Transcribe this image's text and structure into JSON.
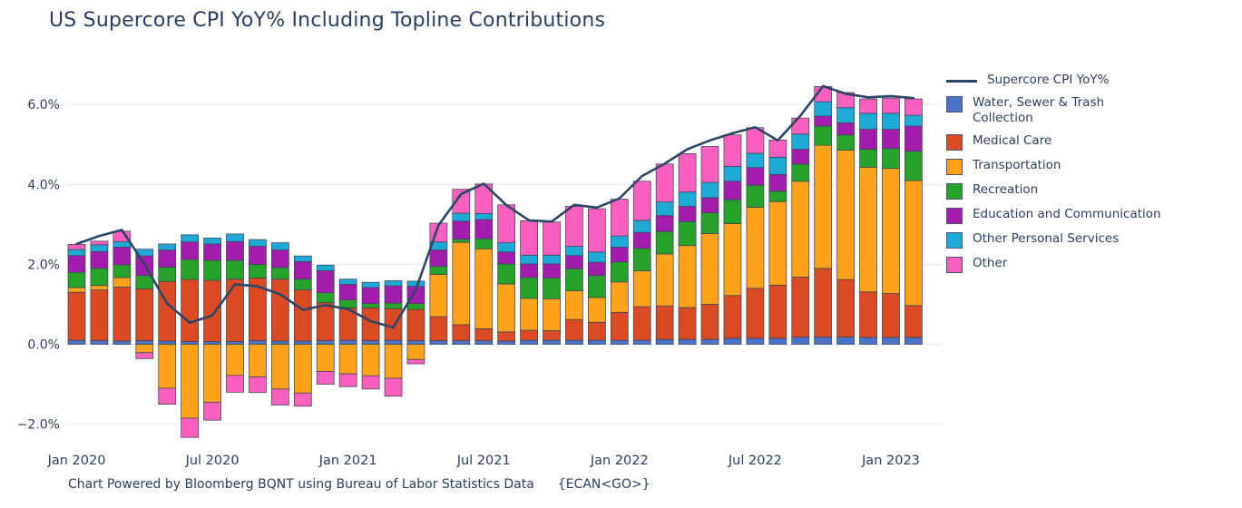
{
  "title": "US Supercore CPI YoY% Including Topline Contributions",
  "footer": {
    "text": "Chart Powered by Bloomberg BQNT using Bureau of Labor Statistics Data",
    "code": "{ECAN<GO>}"
  },
  "colors": {
    "text": "#2a3f5f",
    "grid": "#e8eef7",
    "bar_outline": "#3c4657",
    "line": "#2e4566",
    "water": "#4c72c8",
    "medical": "#da4a24",
    "transportation": "#fea31b",
    "recreation": "#27a22b",
    "education": "#a31dad",
    "other_personal": "#1fa9d6",
    "other": "#fa60be"
  },
  "legend": {
    "items": [
      {
        "type": "line",
        "label": "Supercore CPI YoY%",
        "color": "#2e4566"
      },
      {
        "type": "box",
        "label": "Water, Sewer & Trash\nCollection",
        "color": "#4c72c8"
      },
      {
        "type": "box",
        "label": "Medical Care",
        "color": "#da4a24"
      },
      {
        "type": "box",
        "label": "Transportation",
        "color": "#fea31b"
      },
      {
        "type": "box",
        "label": "Recreation",
        "color": "#27a22b"
      },
      {
        "type": "box",
        "label": "Education and Communication",
        "color": "#a31dad"
      },
      {
        "type": "box",
        "label": "Other Personal Services",
        "color": "#1fa9d6"
      },
      {
        "type": "box",
        "label": "Other",
        "color": "#fa60be"
      }
    ]
  },
  "chart_data": {
    "type": "bar",
    "subtype": "stacked-bar-with-line",
    "title": "US Supercore CPI YoY% Including Topline Contributions",
    "xlabel": "",
    "ylabel": "",
    "grid": true,
    "legend_position": "right",
    "ylim": [
      -2.8,
      6.9
    ],
    "categories": [
      "Jan 2020",
      "Feb 2020",
      "Mar 2020",
      "Apr 2020",
      "May 2020",
      "Jun 2020",
      "Jul 2020",
      "Aug 2020",
      "Sep 2020",
      "Oct 2020",
      "Nov 2020",
      "Dec 2020",
      "Jan 2021",
      "Feb 2021",
      "Mar 2021",
      "Apr 2021",
      "May 2021",
      "Jun 2021",
      "Jul 2021",
      "Aug 2021",
      "Sep 2021",
      "Oct 2021",
      "Nov 2021",
      "Dec 2021",
      "Jan 2022",
      "Feb 2022",
      "Mar 2022",
      "Apr 2022",
      "May 2022",
      "Jun 2022",
      "Jul 2022",
      "Aug 2022",
      "Sep 2022",
      "Oct 2022",
      "Nov 2022",
      "Dec 2022",
      "Jan 2023",
      "Feb 2023"
    ],
    "y_axis": {
      "ticks": [
        {
          "value": 6,
          "label": "6.0%"
        },
        {
          "value": 4,
          "label": "4.0%"
        },
        {
          "value": 2,
          "label": "2.0%"
        },
        {
          "value": 0,
          "label": "0.0%"
        },
        {
          "value": -2,
          "label": "−2.0%"
        }
      ]
    },
    "x_axis": {
      "ticks": [
        {
          "index": 0,
          "label": "Jan 2020"
        },
        {
          "index": 6,
          "label": "Jul 2020"
        },
        {
          "index": 12,
          "label": "Jan 2021"
        },
        {
          "index": 18,
          "label": "Jul 2021"
        },
        {
          "index": 24,
          "label": "Jan 2022"
        },
        {
          "index": 30,
          "label": "Jul 2022"
        },
        {
          "index": 36,
          "label": "Jan 2023"
        }
      ]
    },
    "series": [
      {
        "name": "Water, Sewer & Trash Collection",
        "color": "#4c72c8",
        "values": [
          0.1,
          0.09,
          0.08,
          0.09,
          0.08,
          0.07,
          0.07,
          0.07,
          0.09,
          0.08,
          0.08,
          0.09,
          0.1,
          0.09,
          0.1,
          0.09,
          0.09,
          0.09,
          0.09,
          0.08,
          0.1,
          0.1,
          0.1,
          0.1,
          0.1,
          0.1,
          0.12,
          0.12,
          0.12,
          0.15,
          0.15,
          0.15,
          0.18,
          0.18,
          0.18,
          0.17,
          0.17,
          0.17
        ]
      },
      {
        "name": "Medical Care",
        "color": "#da4a24",
        "values": [
          1.2,
          1.27,
          1.35,
          1.3,
          1.49,
          1.55,
          1.53,
          1.56,
          1.57,
          1.55,
          1.28,
          0.95,
          0.81,
          0.82,
          0.79,
          0.78,
          0.6,
          0.4,
          0.3,
          0.23,
          0.25,
          0.24,
          0.52,
          0.45,
          0.7,
          0.84,
          0.84,
          0.8,
          0.88,
          1.07,
          1.25,
          1.33,
          1.5,
          1.72,
          1.44,
          1.14,
          1.1,
          0.8
        ]
      },
      {
        "name": "Transportation",
        "color": "#fea31b",
        "values": [
          0.12,
          0.11,
          0.24,
          -0.21,
          -1.1,
          -1.85,
          -1.45,
          -0.78,
          -0.82,
          -1.12,
          -1.22,
          -0.68,
          -0.74,
          -0.79,
          -0.85,
          -0.38,
          1.06,
          2.06,
          2.0,
          1.2,
          0.8,
          0.8,
          0.72,
          0.62,
          0.76,
          0.9,
          1.3,
          1.55,
          1.77,
          1.8,
          2.03,
          2.09,
          2.4,
          3.08,
          3.24,
          3.12,
          3.13,
          3.13
        ]
      },
      {
        "name": "Recreation",
        "color": "#27a22b",
        "values": [
          0.38,
          0.43,
          0.32,
          0.33,
          0.36,
          0.5,
          0.5,
          0.47,
          0.34,
          0.29,
          0.27,
          0.25,
          0.2,
          0.11,
          0.14,
          0.15,
          0.2,
          0.08,
          0.25,
          0.5,
          0.52,
          0.52,
          0.55,
          0.55,
          0.5,
          0.56,
          0.56,
          0.6,
          0.52,
          0.6,
          0.55,
          0.26,
          0.43,
          0.48,
          0.38,
          0.45,
          0.5,
          0.73
        ]
      },
      {
        "name": "Education and Communication",
        "color": "#a31dad",
        "values": [
          0.42,
          0.42,
          0.44,
          0.49,
          0.43,
          0.44,
          0.41,
          0.47,
          0.45,
          0.44,
          0.44,
          0.55,
          0.39,
          0.4,
          0.43,
          0.43,
          0.41,
          0.45,
          0.48,
          0.3,
          0.34,
          0.35,
          0.33,
          0.33,
          0.37,
          0.4,
          0.4,
          0.38,
          0.38,
          0.46,
          0.44,
          0.42,
          0.37,
          0.25,
          0.3,
          0.5,
          0.48,
          0.63
        ]
      },
      {
        "name": "Other Personal Services",
        "color": "#1fa9d6",
        "values": [
          0.15,
          0.17,
          0.14,
          0.17,
          0.15,
          0.18,
          0.15,
          0.19,
          0.17,
          0.18,
          0.14,
          0.14,
          0.13,
          0.13,
          0.13,
          0.13,
          0.2,
          0.2,
          0.15,
          0.23,
          0.22,
          0.22,
          0.23,
          0.26,
          0.28,
          0.3,
          0.34,
          0.36,
          0.38,
          0.37,
          0.36,
          0.43,
          0.38,
          0.36,
          0.38,
          0.4,
          0.4,
          0.27
        ]
      },
      {
        "name": "Other",
        "color": "#fa60be",
        "values": [
          0.13,
          0.09,
          0.26,
          -0.15,
          -0.4,
          -0.48,
          -0.45,
          -0.42,
          -0.39,
          -0.4,
          -0.33,
          -0.32,
          -0.32,
          -0.33,
          -0.45,
          -0.11,
          0.47,
          0.6,
          0.74,
          0.95,
          0.86,
          0.83,
          1.0,
          1.08,
          0.92,
          0.98,
          0.95,
          0.96,
          0.9,
          0.79,
          0.64,
          0.43,
          0.4,
          0.38,
          0.38,
          0.36,
          0.38,
          0.41
        ]
      }
    ],
    "line_series": {
      "name": "Supercore CPI YoY%",
      "color": "#2e4566",
      "values": [
        2.51,
        2.71,
        2.86,
        2.0,
        1.02,
        0.54,
        0.72,
        1.5,
        1.45,
        1.25,
        0.86,
        0.98,
        0.88,
        0.58,
        0.42,
        1.37,
        2.98,
        3.76,
        4.02,
        3.48,
        3.1,
        3.07,
        3.49,
        3.42,
        3.65,
        4.21,
        4.52,
        4.88,
        5.1,
        5.28,
        5.43,
        5.1,
        5.72,
        6.46,
        6.27,
        6.18,
        6.21,
        6.16
      ]
    }
  }
}
